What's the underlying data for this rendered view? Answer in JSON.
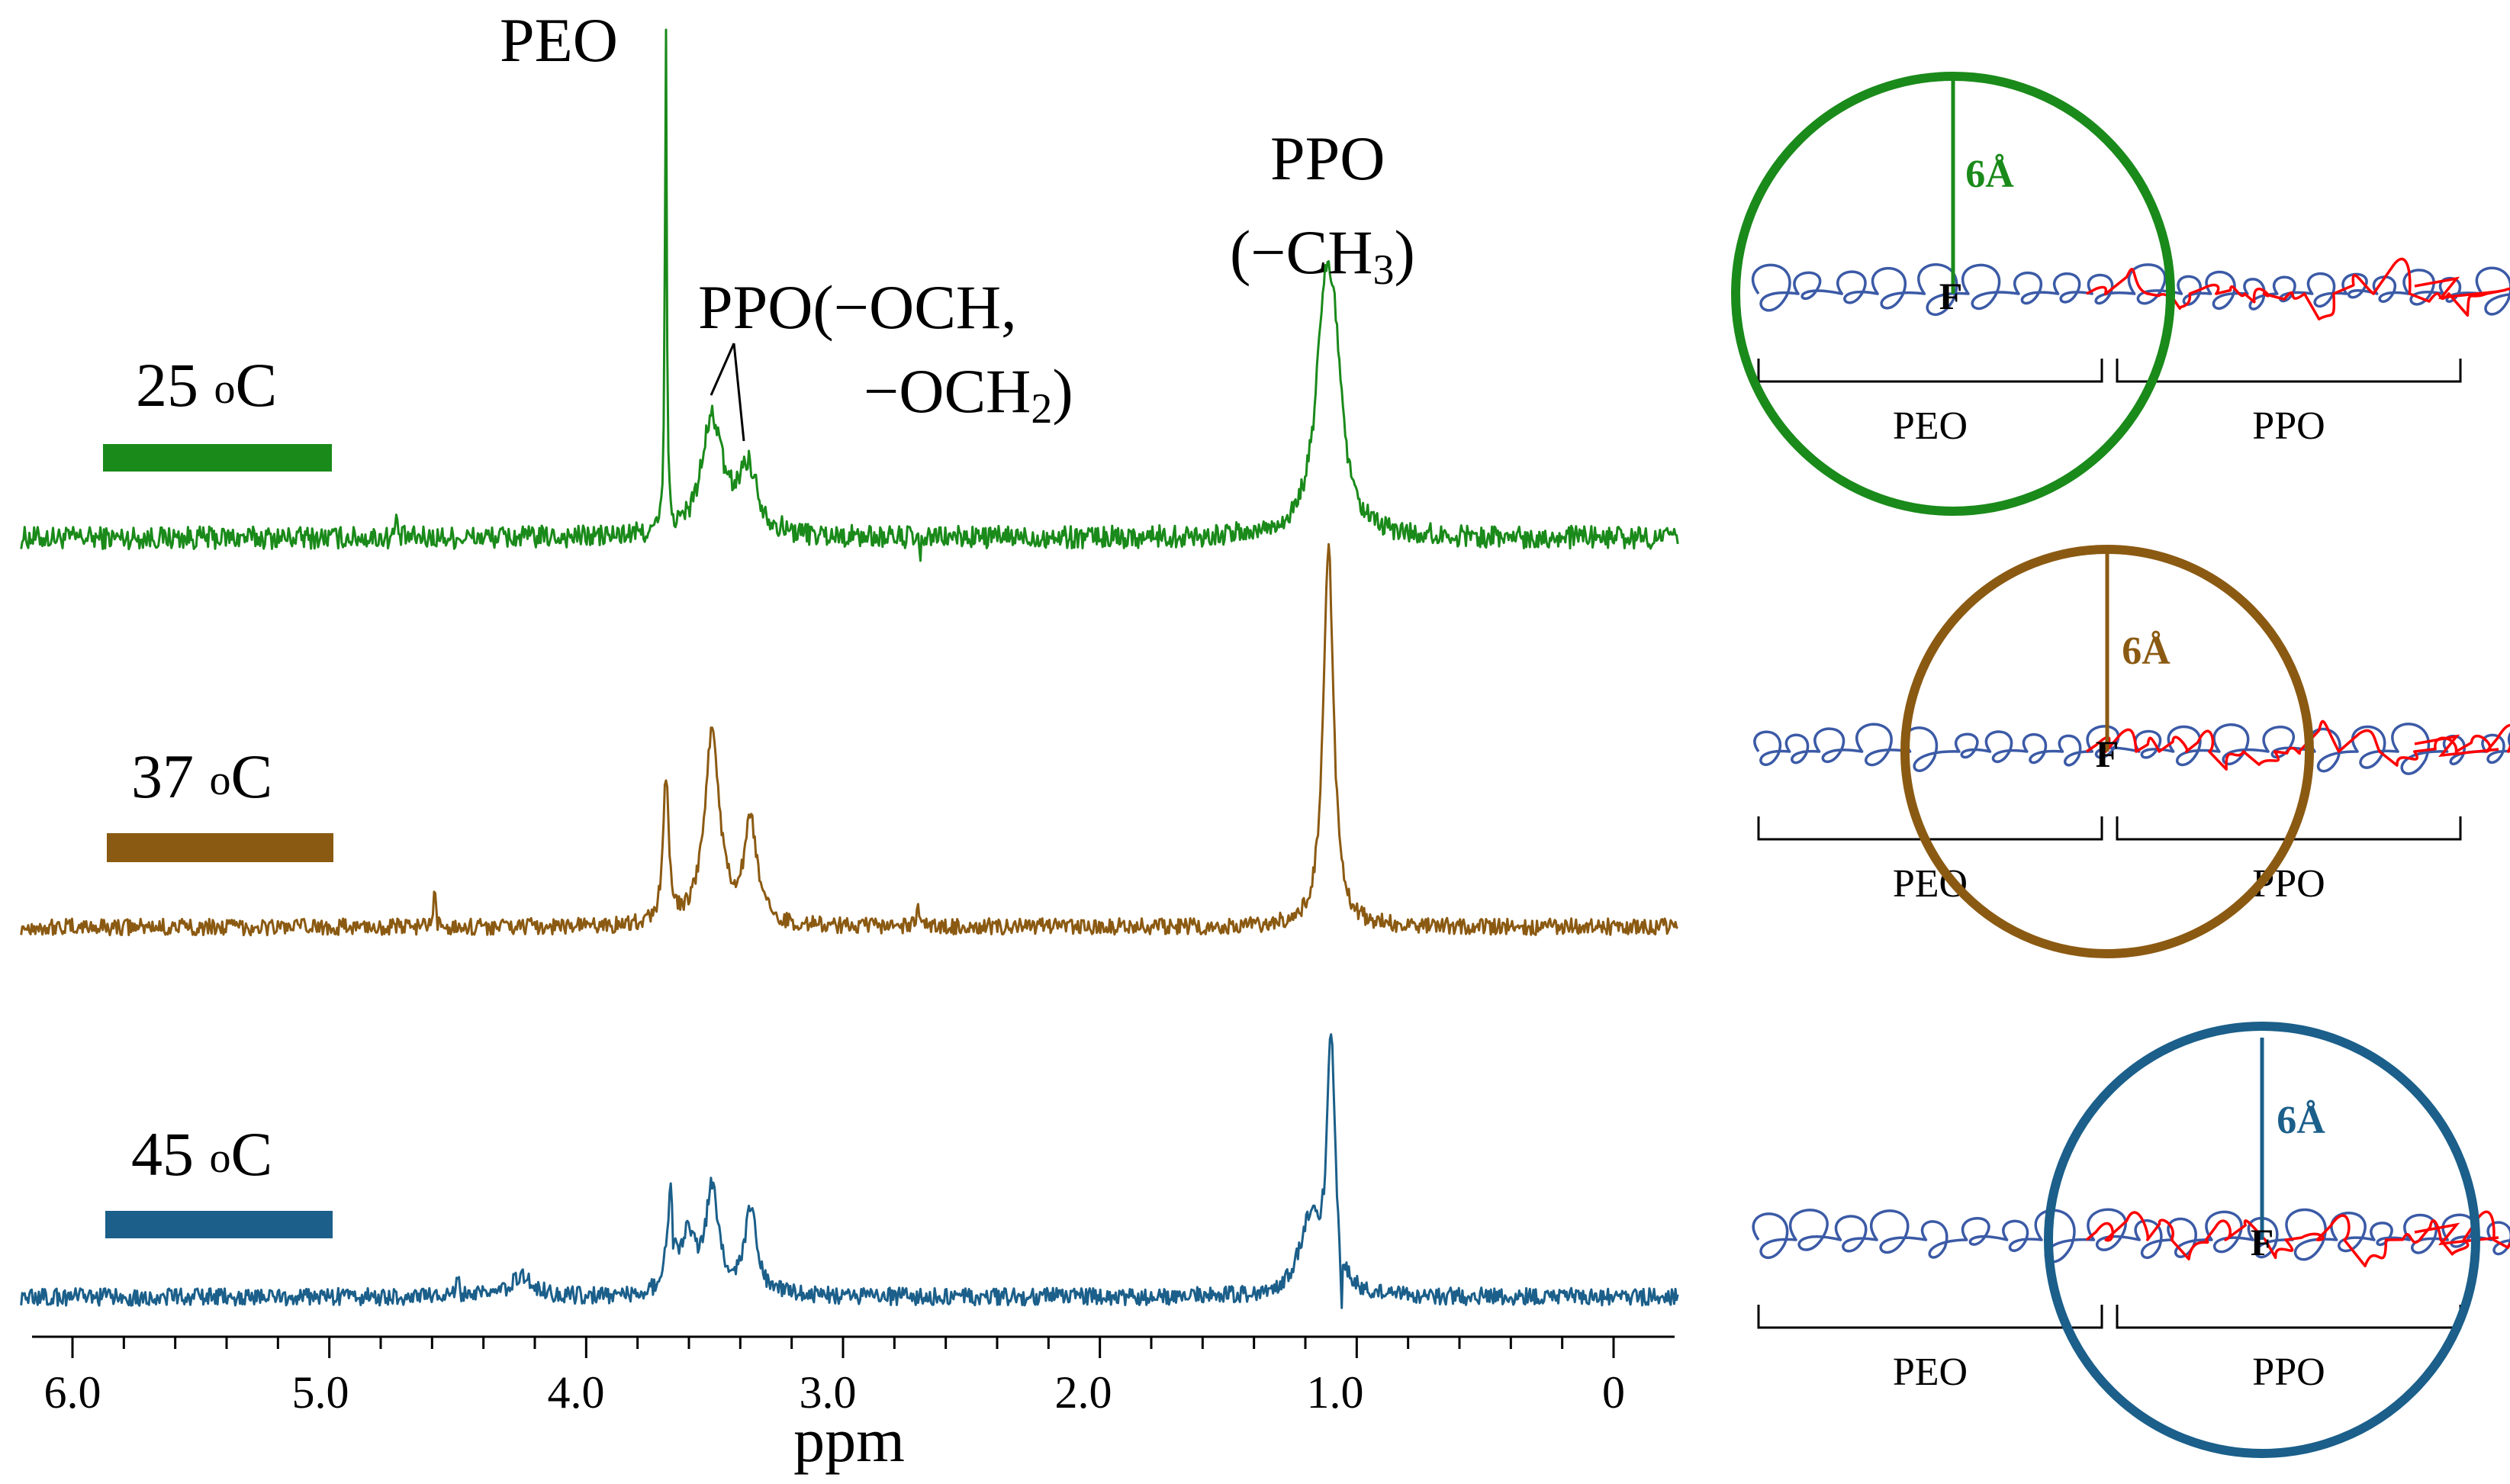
{
  "chart_data": {
    "type": "line",
    "title": "",
    "xlabel": "ppm",
    "ylabel": "",
    "xlim": [
      6.2,
      -0.25
    ],
    "x_reversed": true,
    "x_ticks": [
      "6.0",
      "5.0",
      "4.0",
      "3.0",
      "2.0",
      "1.0",
      "0"
    ],
    "x_tick_values": [
      6.0,
      5.0,
      4.0,
      3.0,
      2.0,
      1.0,
      0.0
    ],
    "peak_labels": {
      "peo": "PEO",
      "ppo_methine_line1": "PPO(−OCH,",
      "ppo_methine_line2_prefix": "−OCH",
      "ppo_methine_line2_sub": "2",
      "ppo_methine_line2_suffix": ")",
      "ppo_methyl_line1": "PPO",
      "ppo_methyl_line2_prefix": "(−CH",
      "ppo_methyl_line2_sub": "3",
      "ppo_methyl_line2_suffix": ")"
    },
    "series": [
      {
        "name": "25 °C",
        "temp_value": "25 ",
        "temp_o": "o",
        "temp_unit": "C",
        "color": "#1a8a1a",
        "baseline": 0.0,
        "noise": 0.045,
        "peaks": [
          {
            "ppm": 3.69,
            "height": 2.05,
            "width": 0.004
          },
          {
            "ppm": 3.51,
            "height": 0.46,
            "width": 0.05
          },
          {
            "ppm": 3.37,
            "height": 0.26,
            "width": 0.045
          },
          {
            "ppm": 1.12,
            "height": 0.95,
            "width": 0.045
          },
          {
            "ppm": 1.08,
            "height": 0.35,
            "width": 0.03
          },
          {
            "ppm": 4.74,
            "height": 0.09,
            "width": 0.004
          },
          {
            "ppm": 2.7,
            "height": -0.12,
            "width": 0.004
          }
        ]
      },
      {
        "name": "37 °C",
        "temp_value": "37 ",
        "temp_o": "o",
        "temp_unit": "C",
        "color": "#8b5a12",
        "baseline": 0.0,
        "noise": 0.035,
        "peaks": [
          {
            "ppm": 3.69,
            "height": 0.62,
            "width": 0.013
          },
          {
            "ppm": 3.51,
            "height": 0.82,
            "width": 0.035
          },
          {
            "ppm": 3.36,
            "height": 0.42,
            "width": 0.03
          },
          {
            "ppm": 1.11,
            "height": 1.6,
            "width": 0.024
          },
          {
            "ppm": 4.59,
            "height": 0.15,
            "width": 0.004
          },
          {
            "ppm": 2.71,
            "height": 0.12,
            "width": 0.004
          }
        ]
      },
      {
        "name": "45 °C",
        "temp_value": "45 ",
        "temp_o": "o",
        "temp_unit": "C",
        "color": "#1b5f8a",
        "baseline": 0.0,
        "noise": 0.04,
        "peaks": [
          {
            "ppm": 3.67,
            "height": 0.45,
            "width": 0.018
          },
          {
            "ppm": 3.51,
            "height": 0.48,
            "width": 0.03
          },
          {
            "ppm": 3.36,
            "height": 0.38,
            "width": 0.03
          },
          {
            "ppm": 3.6,
            "height": 0.25,
            "width": 0.03
          },
          {
            "ppm": 3.66,
            "height": -0.2,
            "width": 0.004
          },
          {
            "ppm": 4.25,
            "height": 0.1,
            "width": 0.05
          },
          {
            "ppm": 4.5,
            "height": 0.12,
            "width": 0.004
          },
          {
            "ppm": 1.1,
            "height": 1.15,
            "width": 0.018
          },
          {
            "ppm": 1.18,
            "height": 0.35,
            "width": 0.05
          },
          {
            "ppm": 1.06,
            "height": -0.3,
            "width": 0.004
          }
        ]
      }
    ]
  },
  "diagram": {
    "radius_label": "6Å",
    "center_atom": "F",
    "block_labels": {
      "peo": "PEO",
      "ppo": "PPO"
    },
    "colors": {
      "peo_chain": "#3b5aa6",
      "ppo_chain": "#ff0000"
    },
    "panels": [
      {
        "name": "25C",
        "color": "#1a8a1a"
      },
      {
        "name": "37C",
        "color": "#8b5a12"
      },
      {
        "name": "45C",
        "color": "#1b5f8a"
      }
    ]
  }
}
